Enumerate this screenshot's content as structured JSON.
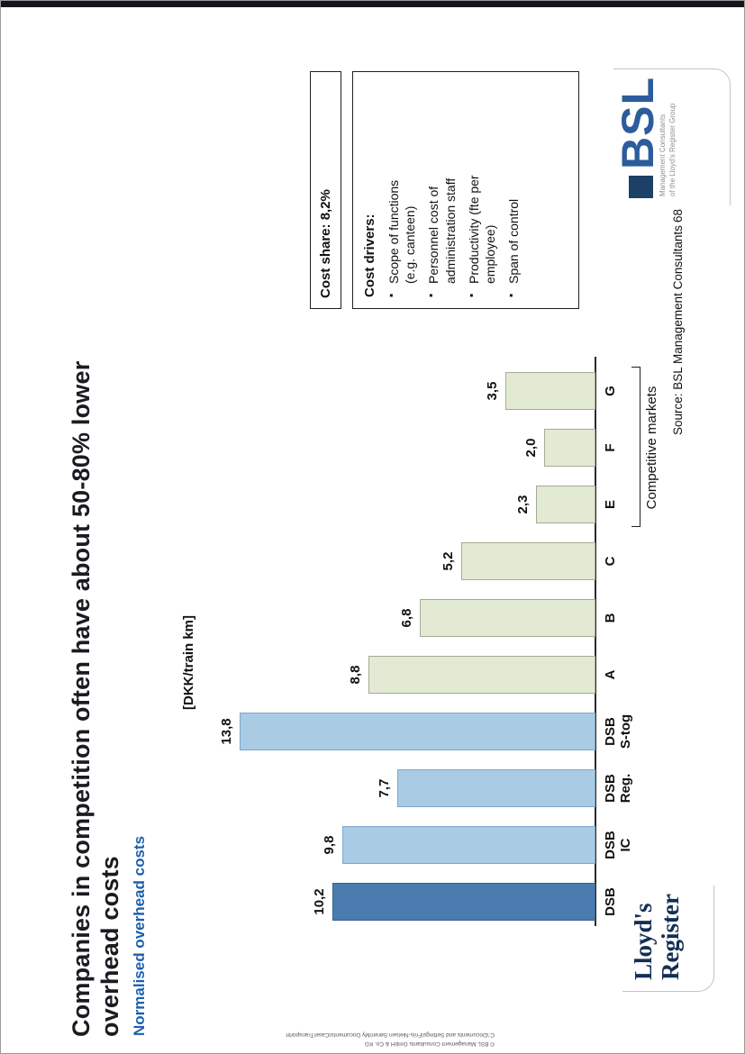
{
  "slide": {
    "title": "Companies in competition often have about 50-80% lower\noverhead costs",
    "subtitle": "Normalised overhead costs",
    "source": "Source: BSL Management Consultants",
    "page_number": "68",
    "footer_lines": [
      "© BSL Management Consultants GmbH & Co. KG",
      "C:\\Documents and Settings\\Friis-Nielsen Søren\\My Documents\\Case\\Transportministeriet\\data\\BSL\\0262001_DSB_Benchmarking_Results_20090114.ppt"
    ]
  },
  "cost_share_box": {
    "label": "Cost share: 8,2%"
  },
  "cost_drivers_box": {
    "title": "Cost drivers:",
    "items": [
      "Scope of functions\n(e.g. canteen)",
      "Personnel cost of\nadministration staff",
      "Productivity (fte per\nemployee)",
      "Span of control"
    ]
  },
  "chart_data": {
    "type": "bar",
    "title": "Normalised overhead costs",
    "ylabel": "[DKK/train km]",
    "xlabel": "",
    "ylim": [
      0,
      14
    ],
    "grid": false,
    "legend": "none",
    "categories": [
      "DSB",
      "DSB\nIC",
      "DSB\nReg.",
      "DSB\nS-tog",
      "A",
      "B",
      "C",
      "E",
      "F",
      "G"
    ],
    "values": [
      10.2,
      9.8,
      7.7,
      13.8,
      8.8,
      6.8,
      5.2,
      2.3,
      2.0,
      3.5
    ],
    "value_labels": [
      "10,2",
      "9,8",
      "7,7",
      "13,8",
      "8,8",
      "6,8",
      "5,2",
      "2,3",
      "2,0",
      "3,5"
    ],
    "bar_colors": [
      "#4b7cb0",
      "#a9cbe4",
      "#a9cbe4",
      "#a9cbe4",
      "#e2ead4",
      "#e2ead4",
      "#e2ead4",
      "#e2ead4",
      "#e2ead4",
      "#e2ead4"
    ],
    "bar_border_colors": [
      "#34618f",
      "#7ba7cc",
      "#7ba7cc",
      "#7ba7cc",
      "#a3ab93",
      "#a3ab93",
      "#a3ab93",
      "#a3ab93",
      "#a3ab93",
      "#a3ab93"
    ],
    "bracket_label": "Competitive markets",
    "bracket_categories": [
      "E",
      "F",
      "G"
    ],
    "colors": {
      "dsb_main": "#4b7cb0",
      "dsb_sub": "#a9cbe4",
      "benchmark": "#e2ead4",
      "subtitle_blue": "#1d5fae"
    }
  },
  "logos": {
    "bsl": {
      "text": "BSL",
      "square_icon": "bsl-square-icon",
      "sub1": "Management Consultants",
      "sub2": "of the Lloyd's Register Group"
    },
    "lloyds": {
      "line1": "Lloyd's",
      "line2": "Register"
    }
  }
}
